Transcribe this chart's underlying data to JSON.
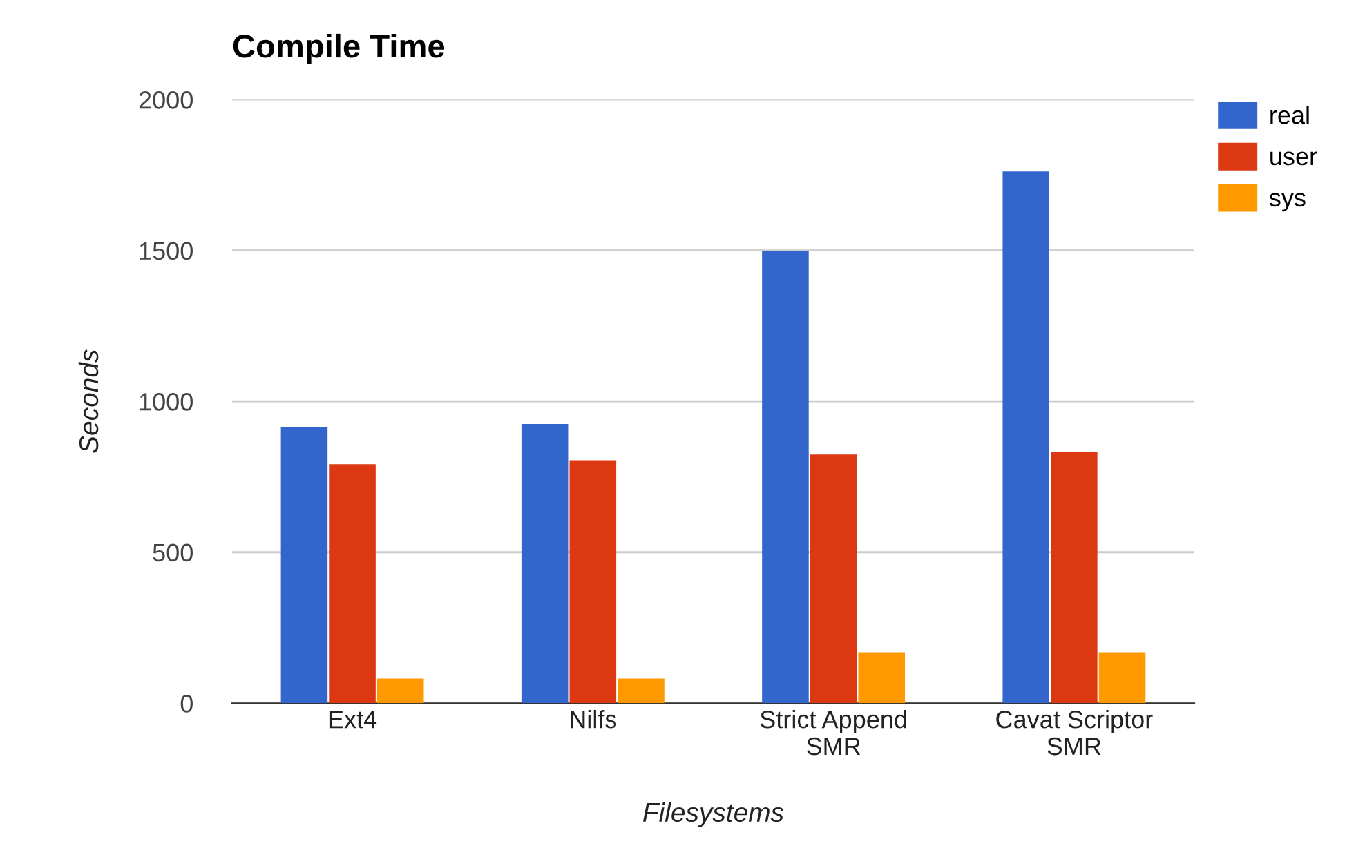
{
  "chart_data": {
    "type": "bar",
    "title": "Compile Time",
    "xlabel": "Filesystems",
    "ylabel": "Seconds",
    "categories": [
      "Ext4",
      "Nilfs",
      "Strict Append\nSMR",
      "Cavat Scriptor\nSMR"
    ],
    "series": [
      {
        "name": "real",
        "color": "#3366cc",
        "values": [
          915,
          925,
          1497,
          1762
        ]
      },
      {
        "name": "user",
        "color": "#dc3912",
        "values": [
          792,
          805,
          824,
          833
        ]
      },
      {
        "name": "sys",
        "color": "#ff9900",
        "values": [
          82,
          82,
          169,
          169
        ]
      }
    ],
    "ylim": [
      0,
      2000
    ],
    "yticks": [
      0,
      500,
      1000,
      1500,
      2000
    ],
    "grid": "y",
    "legend": "top right"
  }
}
